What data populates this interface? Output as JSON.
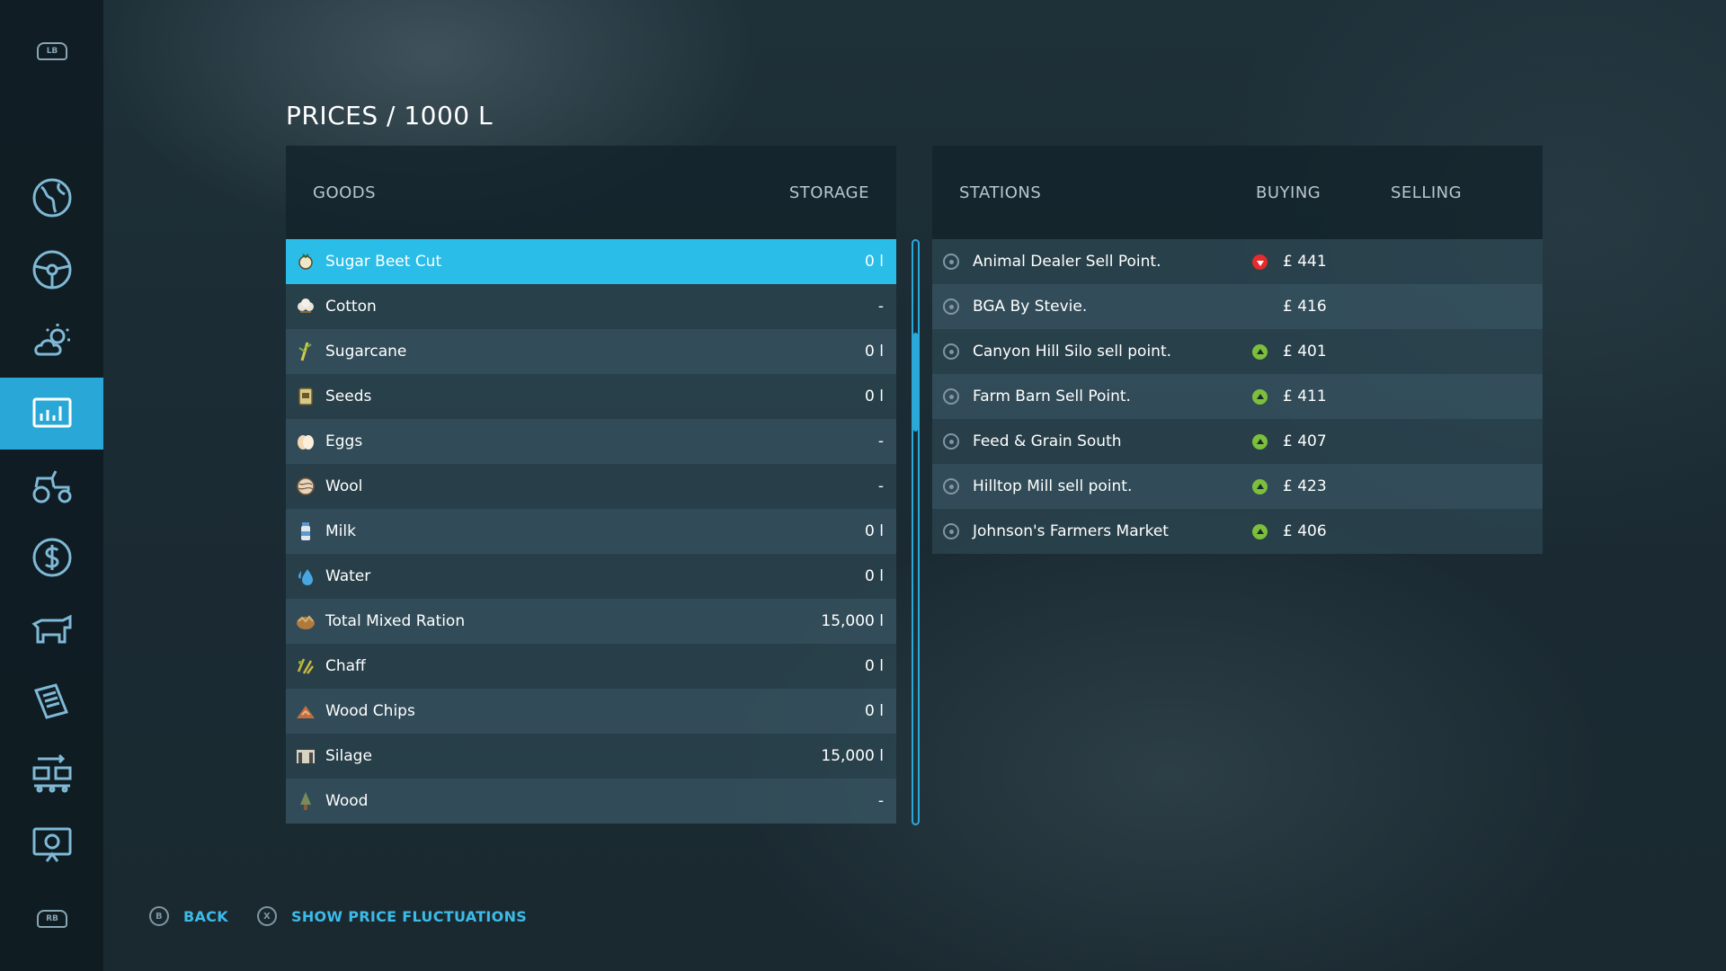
{
  "page": {
    "title": "PRICES / 1000 L"
  },
  "sidebar": {
    "top_bumper": "LB",
    "bottom_bumper": "RB",
    "items": [
      {
        "id": "map",
        "icon": "globe-map-icon",
        "active": false
      },
      {
        "id": "vehicles",
        "icon": "steering-wheel-icon",
        "active": false
      },
      {
        "id": "weather",
        "icon": "weather-icon",
        "active": false
      },
      {
        "id": "prices",
        "icon": "price-chart-icon",
        "active": true
      },
      {
        "id": "fleet",
        "icon": "tractor-icon",
        "active": false
      },
      {
        "id": "finances",
        "icon": "dollar-icon",
        "active": false
      },
      {
        "id": "animals",
        "icon": "cow-icon",
        "active": false
      },
      {
        "id": "contracts",
        "icon": "documents-icon",
        "active": false
      },
      {
        "id": "production",
        "icon": "production-chain-icon",
        "active": false
      },
      {
        "id": "help",
        "icon": "help-screen-icon",
        "active": false
      }
    ]
  },
  "goods": {
    "headers": {
      "goods": "GOODS",
      "storage": "STORAGE"
    },
    "rows": [
      {
        "name": "Sugar Beet Cut",
        "storage": "0 l",
        "icon": "sugar-beet-cut-icon",
        "selected": true
      },
      {
        "name": "Cotton",
        "storage": "-",
        "icon": "cotton-icon"
      },
      {
        "name": "Sugarcane",
        "storage": "0 l",
        "icon": "sugarcane-icon"
      },
      {
        "name": "Seeds",
        "storage": "0 l",
        "icon": "seeds-icon"
      },
      {
        "name": "Eggs",
        "storage": "-",
        "icon": "eggs-icon"
      },
      {
        "name": "Wool",
        "storage": "-",
        "icon": "wool-icon"
      },
      {
        "name": "Milk",
        "storage": "0 l",
        "icon": "milk-icon"
      },
      {
        "name": "Water",
        "storage": "0 l",
        "icon": "water-icon"
      },
      {
        "name": "Total Mixed Ration",
        "storage": "15,000 l",
        "icon": "total-mixed-ration-icon"
      },
      {
        "name": "Chaff",
        "storage": "0 l",
        "icon": "chaff-icon"
      },
      {
        "name": "Wood Chips",
        "storage": "0 l",
        "icon": "wood-chips-icon"
      },
      {
        "name": "Silage",
        "storage": "15,000 l",
        "icon": "silage-icon"
      },
      {
        "name": "Wood",
        "storage": "-",
        "icon": "wood-icon"
      }
    ]
  },
  "stations": {
    "headers": {
      "stations": "STATIONS",
      "buying": "BUYING",
      "selling": "SELLING"
    },
    "rows": [
      {
        "name": "Animal Dealer Sell Point.",
        "price": "£ 441",
        "trend": "down"
      },
      {
        "name": "BGA By Stevie.",
        "price": "£ 416",
        "trend": "none"
      },
      {
        "name": "Canyon Hill Silo sell point.",
        "price": "£ 401",
        "trend": "up"
      },
      {
        "name": "Farm Barn Sell Point.",
        "price": "£ 411",
        "trend": "up"
      },
      {
        "name": "Feed & Grain South",
        "price": "£ 407",
        "trend": "up"
      },
      {
        "name": "Hilltop Mill sell point.",
        "price": "£ 423",
        "trend": "up"
      },
      {
        "name": "Johnson's Farmers Market",
        "price": "£ 406",
        "trend": "up"
      }
    ]
  },
  "footer": {
    "back": {
      "key": "B",
      "label": "BACK"
    },
    "fluctuations": {
      "key": "X",
      "label": "SHOW PRICE FLUCTUATIONS"
    }
  },
  "colors": {
    "accent": "#29bde8",
    "trend_up": "#7cbf3c",
    "trend_down": "#e52b2b"
  }
}
